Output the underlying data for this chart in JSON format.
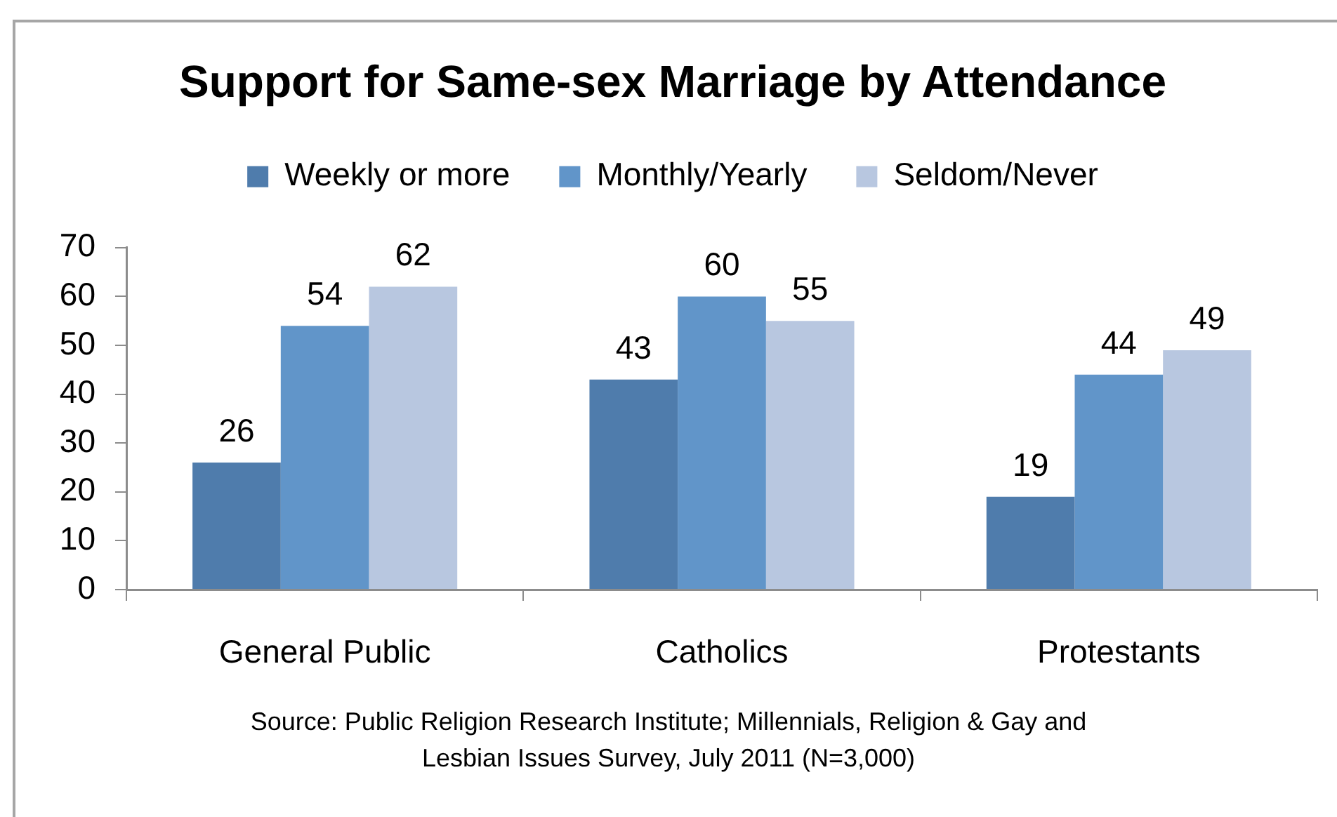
{
  "chart_data": {
    "type": "bar",
    "title": "Support for Same-sex Marriage by Attendance",
    "categories": [
      "General Public",
      "Catholics",
      "Protestants"
    ],
    "series": [
      {
        "name": "Weekly or more",
        "color": "#4f7cac",
        "values": [
          26,
          43,
          19
        ]
      },
      {
        "name": "Monthly/Yearly",
        "color": "#6195c9",
        "values": [
          54,
          60,
          44
        ]
      },
      {
        "name": "Seldom/Never",
        "color": "#b8c7e0",
        "values": [
          62,
          55,
          49
        ]
      }
    ],
    "ylim": [
      0,
      70
    ],
    "yticks": [
      0,
      10,
      20,
      30,
      40,
      50,
      60,
      70
    ],
    "grid": false,
    "legend": "top",
    "data_labels": true,
    "annotations": [
      "Source: Public Religion Research Institute; Millennials, Religion & Gay and Lesbian Issues Survey, July 2011 (N=3,000)"
    ]
  }
}
